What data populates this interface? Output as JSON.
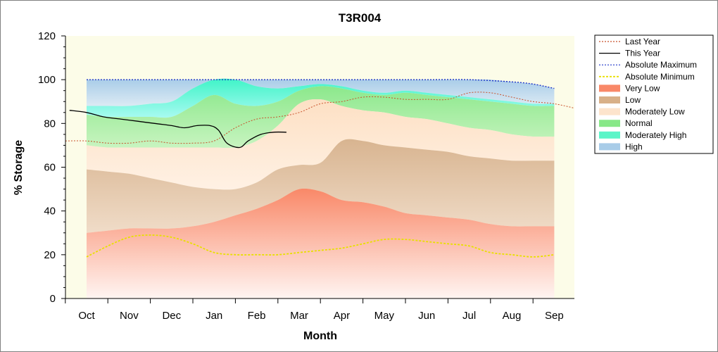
{
  "chart_data": {
    "type": "area",
    "title": "T3R004",
    "xlabel": "Month",
    "ylabel": "% Storage",
    "ylim": [
      0,
      120
    ],
    "yticks": [
      0,
      20,
      40,
      60,
      80,
      100,
      120
    ],
    "categories": [
      "Oct",
      "Nov",
      "Dec",
      "Jan",
      "Feb",
      "Mar",
      "Apr",
      "May",
      "Jun",
      "Jul",
      "Aug",
      "Sep"
    ],
    "grid": false,
    "legend_position": "right",
    "bands_x": [
      0,
      0.5,
      1,
      1.5,
      2,
      2.5,
      3,
      3.5,
      4,
      4.5,
      5,
      5.5,
      6,
      6.5,
      7,
      7.5,
      8,
      8.5,
      9,
      9.5,
      10,
      10.5,
      11
    ],
    "boundaries": {
      "very_low_top": [
        30,
        31,
        32,
        32,
        32,
        33,
        35,
        38,
        41,
        45,
        50,
        49,
        45,
        44,
        42,
        39,
        38,
        37,
        36,
        34,
        33,
        33,
        33
      ],
      "low_top": [
        59,
        58,
        57,
        55,
        53,
        51,
        50,
        50,
        53,
        59,
        61,
        62,
        72,
        72,
        70,
        69,
        68,
        67,
        65,
        64,
        63,
        63,
        63
      ],
      "moderately_low_top": [
        70,
        69,
        69,
        69,
        69,
        69,
        69,
        69,
        72,
        79,
        89,
        91,
        88,
        86,
        85,
        83,
        82,
        80,
        78,
        77,
        75,
        74,
        74
      ],
      "normal_top": [
        84,
        83,
        83,
        83,
        83,
        88,
        93,
        89,
        88,
        90,
        95,
        97,
        96,
        94,
        93,
        94,
        93,
        92,
        91,
        90,
        89,
        88,
        88
      ],
      "moderately_high_top": [
        88,
        88,
        88,
        89,
        90,
        96,
        100,
        100,
        97,
        96,
        97,
        98,
        97,
        95,
        94,
        95,
        94,
        93,
        92,
        91,
        90,
        89,
        89
      ],
      "high_top": [
        100,
        100,
        100,
        100,
        100,
        100,
        100,
        100,
        100,
        100,
        100,
        100,
        100,
        100,
        100,
        100,
        100,
        100,
        100,
        100,
        99,
        98,
        96
      ]
    },
    "series": [
      {
        "name": "Last Year",
        "color": "#c8502a",
        "x": [
          -0.5,
          0,
          0.5,
          1,
          1.5,
          2,
          2.5,
          3,
          3.5,
          4,
          4.5,
          5,
          5.5,
          6,
          6.5,
          7,
          7.5,
          8,
          8.5,
          9,
          9.5,
          10,
          10.5,
          11,
          11.5
        ],
        "values": [
          72,
          72,
          71,
          71,
          72,
          71,
          71,
          72,
          78,
          82,
          83,
          85,
          89,
          90,
          92,
          92,
          91,
          91,
          91,
          94,
          94,
          92,
          90,
          89,
          87
        ]
      },
      {
        "name": "This Year",
        "color": "#000000",
        "x": [
          -0.4,
          0,
          0.4,
          0.8,
          1.2,
          1.6,
          2,
          2.3,
          2.6,
          2.9,
          3.1,
          3.3,
          3.6,
          3.8,
          4.1,
          4.4,
          4.7
        ],
        "values": [
          86,
          85,
          83,
          82,
          81,
          80,
          79,
          78,
          79,
          79,
          77,
          71,
          69,
          72,
          75,
          76,
          76
        ]
      },
      {
        "name": "Absolute Maximum",
        "color": "#1f35c8",
        "x": [
          0,
          1,
          2,
          3,
          4,
          5,
          6,
          7,
          8,
          9,
          10,
          10.5,
          11
        ],
        "values": [
          100,
          100,
          100,
          100,
          100,
          100,
          100,
          100,
          100,
          100,
          99,
          98,
          96
        ]
      },
      {
        "name": "Absolute Minimum",
        "color": "#e8e000",
        "x": [
          0,
          0.5,
          1,
          1.5,
          2,
          2.5,
          3,
          3.5,
          4,
          4.5,
          5,
          5.5,
          6,
          6.5,
          7,
          7.5,
          8,
          8.5,
          9,
          9.5,
          10,
          10.5,
          11
        ],
        "values": [
          19,
          24,
          28,
          29,
          28,
          25,
          21,
          20,
          20,
          20,
          21,
          22,
          23,
          25,
          27,
          27,
          26,
          25,
          24,
          21,
          20,
          19,
          20
        ]
      }
    ],
    "legend": [
      {
        "label": "Last Year",
        "kind": "line",
        "color": "#c8502a",
        "dash": "2,2"
      },
      {
        "label": "This Year",
        "kind": "line",
        "color": "#000000",
        "dash": ""
      },
      {
        "label": "Absolute Maximum",
        "kind": "line",
        "color": "#1f35c8",
        "dash": "2,2"
      },
      {
        "label": "Absolute Minimum",
        "kind": "line",
        "color": "#e8e000",
        "dash": "3,2"
      },
      {
        "label": "Very Low",
        "kind": "fill",
        "color": "#f98868"
      },
      {
        "label": "Low",
        "kind": "fill",
        "color": "#d8b088"
      },
      {
        "label": "Moderately Low",
        "kind": "fill",
        "color": "#fde4cc"
      },
      {
        "label": "Normal",
        "kind": "fill",
        "color": "#88e888"
      },
      {
        "label": "Moderately High",
        "kind": "fill",
        "color": "#5cf5c8"
      },
      {
        "label": "High",
        "kind": "fill",
        "color": "#a8cce8"
      }
    ],
    "colors": {
      "plot_background": "#fcfce8",
      "very_low": "#f98868",
      "low": "#d8b088",
      "moderately_low": "#fde4cc",
      "normal": "#88e888",
      "moderately_high": "#5cf5c8",
      "high": "#a8cce8"
    }
  }
}
